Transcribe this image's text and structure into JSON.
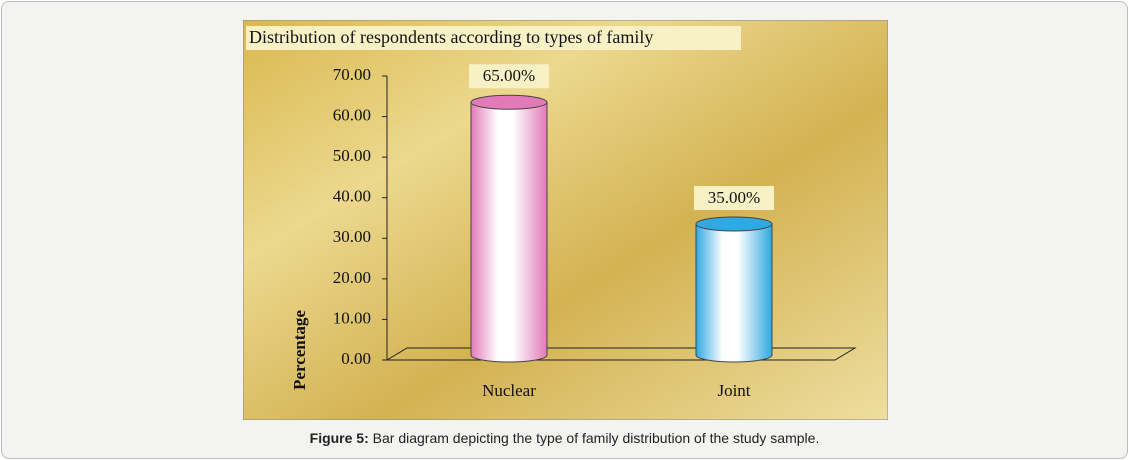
{
  "chart_data": {
    "type": "bar",
    "title": "Distribution of respondents according to types of family",
    "categories": [
      "Nuclear",
      "Joint"
    ],
    "values": [
      65,
      35
    ],
    "value_labels": [
      "65.00%",
      "35.00%"
    ],
    "colors": [
      "#e27ab8",
      "#2fa9e2"
    ],
    "y_label": "Percentage",
    "ylim": [
      0,
      70
    ],
    "yticks": [
      {
        "value": 0,
        "label": "0.00"
      },
      {
        "value": 10,
        "label": "10.00"
      },
      {
        "value": 20,
        "label": "20.00"
      },
      {
        "value": 30,
        "label": "30.00"
      },
      {
        "value": 40,
        "label": "40.00"
      },
      {
        "value": 50,
        "label": "50.00"
      },
      {
        "value": 60,
        "label": "60.00"
      },
      {
        "value": 70,
        "label": "70.00"
      }
    ]
  },
  "caption": {
    "label": "Figure 5:",
    "text": "Bar diagram depicting the type of family distribution of the study sample."
  }
}
